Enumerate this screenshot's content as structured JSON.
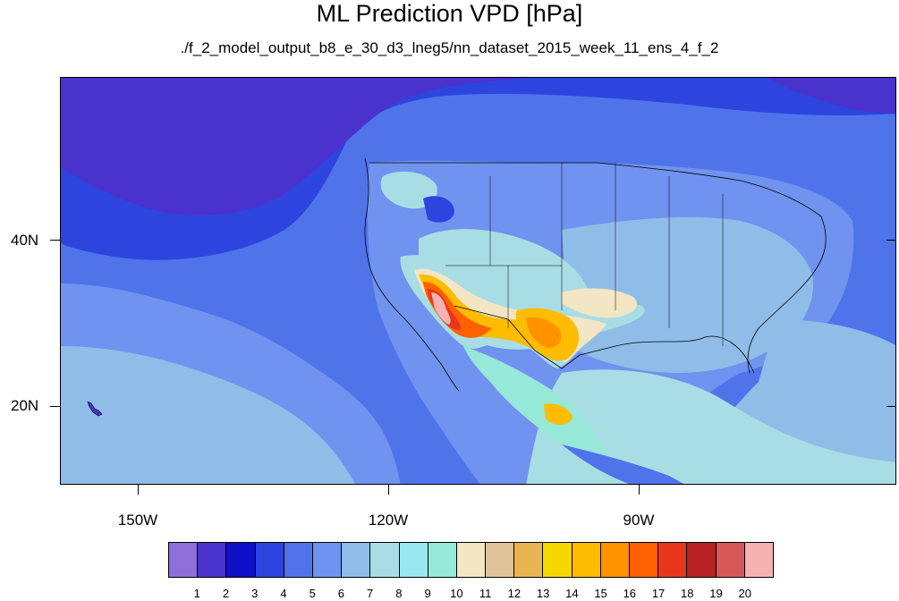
{
  "title": "ML Prediction VPD [hPa]",
  "subtitle": "./f_2_model_output_b8_e_30_d3_lneg5/nn_dataset_2015_week_11_ens_4_f_2",
  "axes": {
    "y_labels": [
      "40N",
      "20N"
    ],
    "x_labels": [
      "150W",
      "120W",
      "90W"
    ]
  },
  "colorbar": {
    "labels": [
      "1",
      "2",
      "3",
      "4",
      "5",
      "6",
      "7",
      "8",
      "9",
      "10",
      "11",
      "12",
      "13",
      "14",
      "15",
      "16",
      "17",
      "18",
      "19",
      "20"
    ],
    "colors": [
      "#8e6ed8",
      "#4a32cc",
      "#0f10c8",
      "#2e44df",
      "#4f74ea",
      "#6f93ee",
      "#8fbde8",
      "#a9dde4",
      "#9ae8ef",
      "#96e8d8",
      "#f3e6c4",
      "#dfc39a",
      "#e8b552",
      "#f6d800",
      "#ffbc00",
      "#ff9200",
      "#ff6000",
      "#e8361a",
      "#b82222",
      "#d85858",
      "#f6b2b2"
    ]
  },
  "map": {
    "region": "North America and eastern Pacific",
    "field": "VPD [hPa]",
    "style": {
      "ocean_far": "#4a32cc",
      "ocean_mid": "#2e44df",
      "ocean_near": "#6f93ee",
      "pacific_south": "#8fbde8",
      "gulf": "#a9dde4"
    }
  }
}
